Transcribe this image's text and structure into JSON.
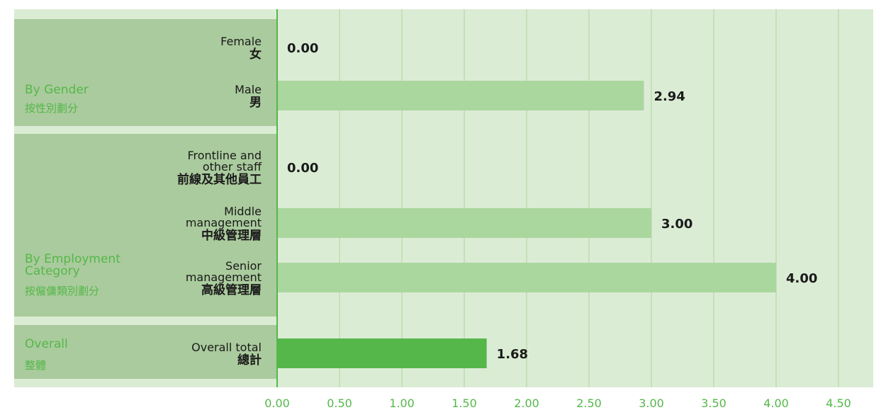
{
  "chart_data": {
    "type": "bar",
    "orientation": "horizontal",
    "title": "",
    "xlabel": "",
    "ylabel": "",
    "xlim": [
      0,
      4.5
    ],
    "xticks": [
      "0.00",
      "0.50",
      "1.00",
      "1.50",
      "2.00",
      "2.50",
      "3.00",
      "3.50",
      "4.00",
      "4.50"
    ],
    "grid": true,
    "groups": [
      {
        "label_en": "By Gender",
        "label_zh": "按性別劃分",
        "categories": [
          {
            "en": [
              "Female"
            ],
            "zh": "女",
            "value": 0.0,
            "value_label": "0.00"
          },
          {
            "en": [
              "Male"
            ],
            "zh": "男",
            "value": 2.94,
            "value_label": "2.94"
          }
        ]
      },
      {
        "label_en": "By Employment Category",
        "label_zh": "按僱傭類別劃分",
        "categories": [
          {
            "en": [
              "Frontline and",
              "other staff"
            ],
            "zh": "前線及其他員工",
            "value": 0.0,
            "value_label": "0.00"
          },
          {
            "en": [
              "Middle",
              "management"
            ],
            "zh": "中級管理層",
            "value": 3.0,
            "value_label": "3.00"
          },
          {
            "en": [
              "Senior",
              "management"
            ],
            "zh": "高級管理層",
            "value": 4.0,
            "value_label": "4.00"
          }
        ]
      },
      {
        "label_en": "Overall",
        "label_zh": "整體",
        "categories": [
          {
            "en": [
              "Overall total"
            ],
            "zh": "總計",
            "value": 1.68,
            "value_label": "1.68"
          }
        ]
      }
    ],
    "colors": {
      "plot_bg": "#dbecd5",
      "group_bg": "#aacb9d",
      "gridline": "#a8d69b",
      "axis": "#55b74a",
      "bar": "#aad79e",
      "bar_overall": "#55b74a",
      "group_label": "#55b74a",
      "tick_label": "#55b74a"
    }
  }
}
